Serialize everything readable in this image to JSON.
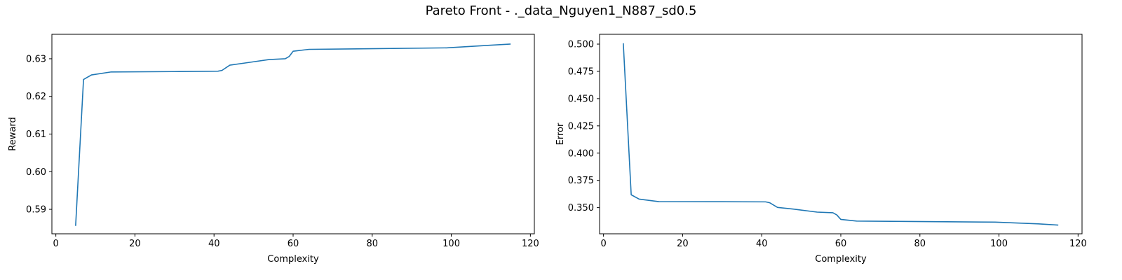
{
  "title": "Pareto Front - ._data_Nguyen1_N887_sd0.5",
  "chart_data": [
    {
      "type": "line",
      "xlabel": "Complexity",
      "ylabel": "Reward",
      "xlim": [
        -1,
        121
      ],
      "ylim": [
        0.5835,
        0.6365
      ],
      "xticks": [
        0,
        20,
        40,
        60,
        80,
        100,
        120
      ],
      "yticks": [
        0.59,
        0.6,
        0.61,
        0.62,
        0.63
      ],
      "ytick_decimals": 2,
      "grid": false,
      "color": "#1f77b4",
      "series": [
        {
          "x": [
            5,
            7,
            9,
            14,
            30,
            41,
            42,
            44,
            48,
            54,
            58,
            59,
            60,
            64,
            99,
            110,
            115
          ],
          "y": [
            0.5856,
            0.6245,
            0.6257,
            0.6265,
            0.6266,
            0.6267,
            0.6269,
            0.6283,
            0.6289,
            0.6298,
            0.63,
            0.6306,
            0.632,
            0.6325,
            0.6329,
            0.6336,
            0.6339
          ]
        }
      ]
    },
    {
      "type": "line",
      "xlabel": "Complexity",
      "ylabel": "Error",
      "xlim": [
        -1,
        121
      ],
      "ylim": [
        0.326,
        0.509
      ],
      "xticks": [
        0,
        20,
        40,
        60,
        80,
        100,
        120
      ],
      "yticks": [
        0.35,
        0.375,
        0.4,
        0.425,
        0.45,
        0.475,
        0.5
      ],
      "ytick_decimals": 3,
      "grid": false,
      "color": "#1f77b4",
      "series": [
        {
          "x": [
            5,
            7,
            9,
            14,
            30,
            41,
            42,
            44,
            48,
            54,
            58,
            59,
            60,
            64,
            99,
            110,
            115
          ],
          "y": [
            0.5008,
            0.3618,
            0.3578,
            0.3555,
            0.3554,
            0.3553,
            0.3545,
            0.3502,
            0.3487,
            0.3459,
            0.3453,
            0.3433,
            0.3392,
            0.3377,
            0.3367,
            0.3351,
            0.334
          ]
        }
      ]
    }
  ]
}
